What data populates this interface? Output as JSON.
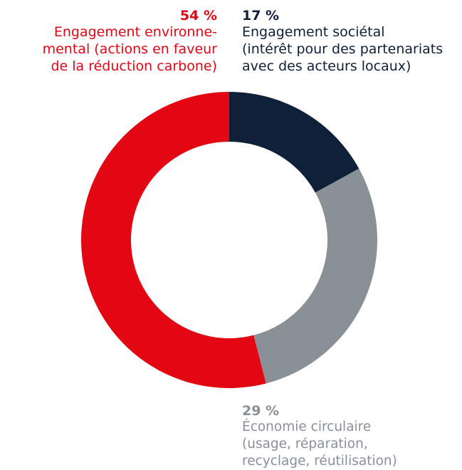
{
  "chart_data": {
    "type": "pie",
    "variant": "donut",
    "categories": [
      "Engagement sociétal",
      "Économie circulaire",
      "Engagement environnemental"
    ],
    "values": [
      17,
      29,
      54
    ],
    "unit": "%",
    "colors": [
      "#0e2138",
      "#8a9196",
      "#e30613"
    ],
    "start": "top",
    "direction": "clockwise",
    "slices": [
      {
        "pct_label": "17 %",
        "lines": [
          "Engagement sociétal",
          "(intérêt pour des partenariats",
          "avec des acteurs locaux)"
        ]
      },
      {
        "pct_label": "29 %",
        "lines": [
          "Économie circulaire",
          "(usage, réparation,",
          "recyclage, réutilisation)"
        ]
      },
      {
        "pct_label": "54 %",
        "lines": [
          "Engagement environne-",
          "mental (actions en faveur",
          "de la réduction carbone)"
        ]
      }
    ]
  }
}
